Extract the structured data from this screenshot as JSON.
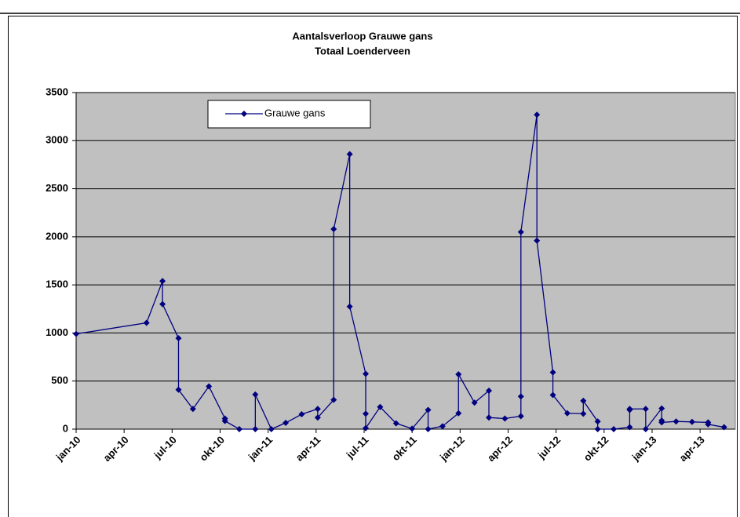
{
  "chart_data": {
    "type": "line",
    "title": "Aantalsverloop  Grauwe gans",
    "subtitle": "Totaal Loenderveen",
    "x": [
      0,
      4.4,
      5.4,
      5.4,
      6.4,
      6.4,
      7.3,
      8.3,
      9.3,
      9.3,
      10.2,
      11.2,
      11.2,
      12.2,
      13.1,
      14.1,
      15.1,
      15.1,
      16.1,
      16.1,
      17.1,
      17.1,
      18.1,
      18.1,
      18.1,
      19.0,
      20.0,
      21.0,
      22.0,
      22.0,
      22.9,
      23.9,
      23.9,
      24.9,
      25.8,
      25.8,
      26.8,
      27.8,
      27.8,
      27.8,
      28.8,
      28.8,
      29.8,
      29.8,
      30.7,
      31.7,
      31.7,
      32.6,
      32.6,
      33.6,
      34.6,
      34.6,
      34.6,
      35.6,
      35.6,
      36.6,
      36.6,
      36.6,
      37.5,
      38.5,
      39.5,
      39.5,
      40.5
    ],
    "series": [
      {
        "name": "Grauwe gans",
        "color": "#000080",
        "values": [
          990,
          1105,
          1540,
          1300,
          945,
          410,
          210,
          445,
          110,
          85,
          0,
          0,
          360,
          0,
          65,
          155,
          210,
          120,
          305,
          2080,
          2860,
          1275,
          575,
          160,
          10,
          230,
          60,
          5,
          200,
          0,
          30,
          165,
          570,
          275,
          400,
          120,
          110,
          135,
          340,
          2050,
          3270,
          1960,
          590,
          355,
          165,
          160,
          295,
          80,
          0,
          0,
          20,
          200,
          210,
          210,
          0,
          215,
          90,
          70,
          80,
          75,
          70,
          50,
          20
        ]
      }
    ],
    "xlim": [
      0,
      41.2
    ],
    "xticks": [
      {
        "value": 0,
        "label": "jan-10"
      },
      {
        "value": 3,
        "label": "apr-10"
      },
      {
        "value": 6,
        "label": "jul-10"
      },
      {
        "value": 9,
        "label": "okt-10"
      },
      {
        "value": 12,
        "label": "jan-11"
      },
      {
        "value": 15,
        "label": "apr-11"
      },
      {
        "value": 18,
        "label": "jul-11"
      },
      {
        "value": 21,
        "label": "okt-11"
      },
      {
        "value": 24,
        "label": "jan-12"
      },
      {
        "value": 27,
        "label": "apr-12"
      },
      {
        "value": 30,
        "label": "jul-12"
      },
      {
        "value": 33,
        "label": "okt-12"
      },
      {
        "value": 36,
        "label": "jan-13"
      },
      {
        "value": 39,
        "label": "apr-13"
      }
    ],
    "ylim": [
      0,
      3500
    ],
    "yticks": [
      0,
      500,
      1000,
      1500,
      2000,
      2500,
      3000,
      3500
    ],
    "grid": true,
    "legend": "upper left",
    "background": "#c0c0c0"
  }
}
